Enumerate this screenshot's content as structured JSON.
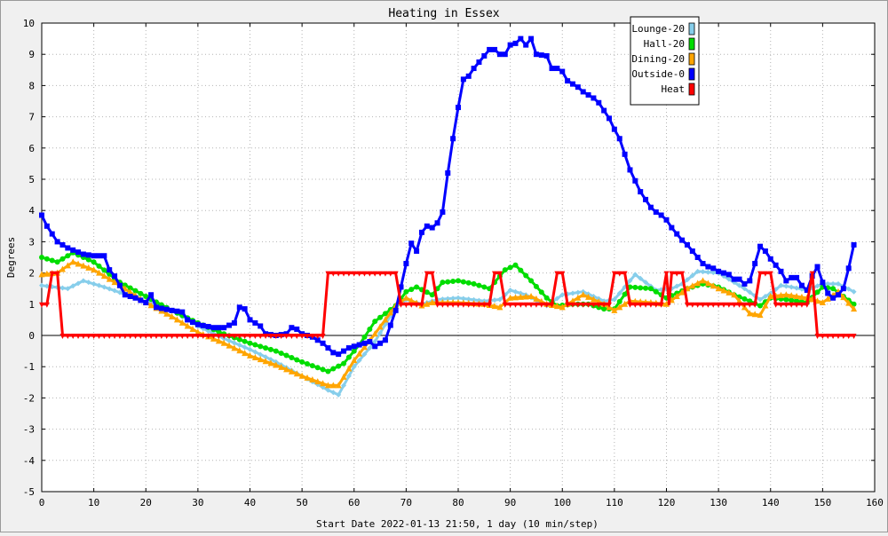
{
  "chart_data": {
    "type": "line",
    "title": "Heating in Essex",
    "xlabel": "Start Date 2022-01-13 21:50, 1 day (10 min/step)",
    "ylabel": "Degrees",
    "xlim": [
      0,
      160
    ],
    "ylim": [
      -5,
      10
    ],
    "xticks": [
      0,
      10,
      20,
      30,
      40,
      50,
      60,
      70,
      80,
      90,
      100,
      110,
      120,
      130,
      140,
      150,
      160
    ],
    "yticks": [
      -5,
      -4,
      -3,
      -2,
      -1,
      0,
      1,
      2,
      3,
      4,
      5,
      6,
      7,
      8,
      9,
      10
    ],
    "grid": true,
    "legend_position": "top-right",
    "series": [
      {
        "name": "Lounge-20",
        "color": "#87ceeb",
        "marker": "diamond",
        "points": [
          [
            0,
            1.6
          ],
          [
            5,
            1.5
          ],
          [
            8,
            1.75
          ],
          [
            12,
            1.55
          ],
          [
            18,
            1.2
          ],
          [
            25,
            0.8
          ],
          [
            30,
            0.3
          ],
          [
            35,
            -0.1
          ],
          [
            40,
            -0.45
          ],
          [
            45,
            -0.85
          ],
          [
            50,
            -1.3
          ],
          [
            55,
            -1.75
          ],
          [
            57,
            -1.9
          ],
          [
            60,
            -1.0
          ],
          [
            64,
            -0.2
          ],
          [
            68,
            0.9
          ],
          [
            70,
            1.15
          ],
          [
            73,
            1.0
          ],
          [
            76,
            1.15
          ],
          [
            80,
            1.2
          ],
          [
            85,
            1.1
          ],
          [
            88,
            1.15
          ],
          [
            90,
            1.45
          ],
          [
            93,
            1.3
          ],
          [
            97,
            0.95
          ],
          [
            100,
            1.3
          ],
          [
            104,
            1.4
          ],
          [
            108,
            1.1
          ],
          [
            110,
            1.15
          ],
          [
            114,
            1.95
          ],
          [
            118,
            1.45
          ],
          [
            121,
            1.5
          ],
          [
            123,
            1.65
          ],
          [
            126,
            2.05
          ],
          [
            130,
            2.0
          ],
          [
            135,
            1.5
          ],
          [
            138,
            1.15
          ],
          [
            140,
            1.35
          ],
          [
            142,
            1.6
          ],
          [
            144,
            1.55
          ],
          [
            147,
            1.45
          ],
          [
            150,
            1.65
          ],
          [
            153,
            1.65
          ],
          [
            156,
            1.4
          ]
        ]
      },
      {
        "name": "Hall-20",
        "color": "#00dd00",
        "marker": "circle",
        "points": [
          [
            0,
            2.5
          ],
          [
            3,
            2.35
          ],
          [
            6,
            2.65
          ],
          [
            10,
            2.35
          ],
          [
            15,
            1.7
          ],
          [
            20,
            1.25
          ],
          [
            25,
            0.8
          ],
          [
            30,
            0.4
          ],
          [
            35,
            0.05
          ],
          [
            40,
            -0.25
          ],
          [
            45,
            -0.5
          ],
          [
            50,
            -0.85
          ],
          [
            55,
            -1.15
          ],
          [
            58,
            -0.9
          ],
          [
            61,
            -0.3
          ],
          [
            64,
            0.45
          ],
          [
            68,
            0.95
          ],
          [
            70,
            1.4
          ],
          [
            72,
            1.55
          ],
          [
            75,
            1.3
          ],
          [
            77,
            1.7
          ],
          [
            80,
            1.75
          ],
          [
            83,
            1.65
          ],
          [
            86,
            1.5
          ],
          [
            89,
            2.1
          ],
          [
            91,
            2.25
          ],
          [
            94,
            1.75
          ],
          [
            97,
            1.2
          ],
          [
            99,
            0.95
          ],
          [
            102,
            1.0
          ],
          [
            105,
            1.0
          ],
          [
            108,
            0.85
          ],
          [
            110,
            0.85
          ],
          [
            113,
            1.55
          ],
          [
            117,
            1.5
          ],
          [
            120,
            1.2
          ],
          [
            124,
            1.5
          ],
          [
            127,
            1.65
          ],
          [
            130,
            1.55
          ],
          [
            133,
            1.3
          ],
          [
            136,
            1.1
          ],
          [
            138,
            0.95
          ],
          [
            140,
            1.2
          ],
          [
            143,
            1.15
          ],
          [
            147,
            1.05
          ],
          [
            150,
            1.55
          ],
          [
            152,
            1.5
          ],
          [
            156,
            1.0
          ]
        ]
      },
      {
        "name": "Dining-20",
        "color": "#ffa500",
        "marker": "triangle",
        "points": [
          [
            0,
            1.95
          ],
          [
            3,
            2.0
          ],
          [
            6,
            2.35
          ],
          [
            10,
            2.1
          ],
          [
            15,
            1.6
          ],
          [
            20,
            1.05
          ],
          [
            25,
            0.6
          ],
          [
            30,
            0.1
          ],
          [
            35,
            -0.25
          ],
          [
            40,
            -0.65
          ],
          [
            45,
            -0.95
          ],
          [
            50,
            -1.3
          ],
          [
            55,
            -1.6
          ],
          [
            57,
            -1.6
          ],
          [
            60,
            -0.8
          ],
          [
            64,
            0.05
          ],
          [
            68,
            0.95
          ],
          [
            70,
            1.2
          ],
          [
            73,
            0.95
          ],
          [
            75,
            1.05
          ],
          [
            80,
            1.05
          ],
          [
            85,
            1.0
          ],
          [
            88,
            0.9
          ],
          [
            90,
            1.2
          ],
          [
            94,
            1.25
          ],
          [
            97,
            1.0
          ],
          [
            100,
            0.9
          ],
          [
            104,
            1.3
          ],
          [
            108,
            1.0
          ],
          [
            110,
            0.8
          ],
          [
            113,
            1.1
          ],
          [
            117,
            1.05
          ],
          [
            120,
            1.0
          ],
          [
            124,
            1.5
          ],
          [
            127,
            1.75
          ],
          [
            130,
            1.5
          ],
          [
            133,
            1.3
          ],
          [
            136,
            0.7
          ],
          [
            138,
            0.65
          ],
          [
            140,
            1.25
          ],
          [
            143,
            1.3
          ],
          [
            147,
            1.2
          ],
          [
            150,
            1.05
          ],
          [
            153,
            1.4
          ],
          [
            156,
            0.85
          ]
        ]
      },
      {
        "name": "Outside-0",
        "color": "#0000ff",
        "marker": "square",
        "points": [
          [
            0,
            3.85
          ],
          [
            1,
            3.5
          ],
          [
            3,
            3.0
          ],
          [
            5,
            2.8
          ],
          [
            8,
            2.6
          ],
          [
            10,
            2.55
          ],
          [
            12,
            2.55
          ],
          [
            13,
            2.1
          ],
          [
            14,
            1.9
          ],
          [
            16,
            1.3
          ],
          [
            18,
            1.2
          ],
          [
            20,
            1.05
          ],
          [
            21,
            1.3
          ],
          [
            22,
            0.9
          ],
          [
            25,
            0.8
          ],
          [
            27,
            0.75
          ],
          [
            28,
            0.5
          ],
          [
            30,
            0.35
          ],
          [
            33,
            0.25
          ],
          [
            35,
            0.25
          ],
          [
            37,
            0.4
          ],
          [
            38,
            0.9
          ],
          [
            39,
            0.85
          ],
          [
            40,
            0.5
          ],
          [
            42,
            0.3
          ],
          [
            43,
            0.05
          ],
          [
            45,
            0.0
          ],
          [
            47,
            0.05
          ],
          [
            48,
            0.25
          ],
          [
            49,
            0.2
          ],
          [
            50,
            0.05
          ],
          [
            52,
            -0.05
          ],
          [
            54,
            -0.25
          ],
          [
            56,
            -0.55
          ],
          [
            57,
            -0.6
          ],
          [
            59,
            -0.4
          ],
          [
            61,
            -0.3
          ],
          [
            63,
            -0.2
          ],
          [
            64,
            -0.35
          ],
          [
            66,
            -0.15
          ],
          [
            68,
            0.8
          ],
          [
            70,
            2.3
          ],
          [
            71,
            2.95
          ],
          [
            72,
            2.7
          ],
          [
            73,
            3.3
          ],
          [
            74,
            3.5
          ],
          [
            75,
            3.45
          ],
          [
            76,
            3.6
          ],
          [
            77,
            3.95
          ],
          [
            78,
            5.2
          ],
          [
            79,
            6.3
          ],
          [
            80,
            7.3
          ],
          [
            81,
            8.2
          ],
          [
            82,
            8.3
          ],
          [
            83,
            8.55
          ],
          [
            84,
            8.75
          ],
          [
            85,
            8.95
          ],
          [
            86,
            9.15
          ],
          [
            87,
            9.15
          ],
          [
            88,
            9.0
          ],
          [
            89,
            9.0
          ],
          [
            90,
            9.3
          ],
          [
            91,
            9.35
          ],
          [
            92,
            9.5
          ],
          [
            93,
            9.3
          ],
          [
            94,
            9.5
          ],
          [
            95,
            9.0
          ],
          [
            97,
            8.95
          ],
          [
            98,
            8.55
          ],
          [
            99,
            8.55
          ],
          [
            100,
            8.45
          ],
          [
            101,
            8.15
          ],
          [
            102,
            8.05
          ],
          [
            103,
            7.95
          ],
          [
            104,
            7.8
          ],
          [
            106,
            7.6
          ],
          [
            107,
            7.45
          ],
          [
            108,
            7.2
          ],
          [
            109,
            6.95
          ],
          [
            110,
            6.6
          ],
          [
            111,
            6.3
          ],
          [
            112,
            5.8
          ],
          [
            113,
            5.3
          ],
          [
            114,
            4.95
          ],
          [
            115,
            4.6
          ],
          [
            116,
            4.35
          ],
          [
            117,
            4.1
          ],
          [
            118,
            3.95
          ],
          [
            119,
            3.85
          ],
          [
            120,
            3.7
          ],
          [
            121,
            3.45
          ],
          [
            122,
            3.25
          ],
          [
            123,
            3.05
          ],
          [
            124,
            2.9
          ],
          [
            125,
            2.7
          ],
          [
            126,
            2.5
          ],
          [
            127,
            2.3
          ],
          [
            128,
            2.2
          ],
          [
            129,
            2.15
          ],
          [
            130,
            2.05
          ],
          [
            132,
            1.95
          ],
          [
            133,
            1.8
          ],
          [
            134,
            1.8
          ],
          [
            135,
            1.65
          ],
          [
            136,
            1.75
          ],
          [
            137,
            2.3
          ],
          [
            138,
            2.85
          ],
          [
            139,
            2.7
          ],
          [
            140,
            2.45
          ],
          [
            141,
            2.25
          ],
          [
            142,
            2.05
          ],
          [
            143,
            1.75
          ],
          [
            144,
            1.85
          ],
          [
            145,
            1.85
          ],
          [
            146,
            1.6
          ],
          [
            147,
            1.45
          ],
          [
            148,
            1.9
          ],
          [
            149,
            2.2
          ],
          [
            150,
            1.7
          ],
          [
            151,
            1.35
          ],
          [
            152,
            1.2
          ],
          [
            153,
            1.3
          ],
          [
            154,
            1.5
          ],
          [
            155,
            2.15
          ],
          [
            156,
            2.9
          ]
        ]
      },
      {
        "name": "Heat",
        "color": "#ff0000",
        "marker": "triangle-down",
        "points": [
          [
            0,
            1
          ],
          [
            1,
            1
          ],
          [
            2,
            2
          ],
          [
            3,
            2
          ],
          [
            4,
            0
          ],
          [
            54,
            0
          ],
          [
            55,
            2
          ],
          [
            68,
            2
          ],
          [
            69,
            1
          ],
          [
            73,
            1
          ],
          [
            74,
            2
          ],
          [
            75,
            2
          ],
          [
            76,
            1
          ],
          [
            86,
            1
          ],
          [
            87,
            2
          ],
          [
            88,
            2
          ],
          [
            89,
            1
          ],
          [
            98,
            1
          ],
          [
            99,
            2
          ],
          [
            100,
            2
          ],
          [
            101,
            1
          ],
          [
            109,
            1
          ],
          [
            110,
            2
          ],
          [
            112,
            2
          ],
          [
            113,
            1
          ],
          [
            119,
            1
          ],
          [
            120,
            2
          ],
          [
            120.5,
            1
          ],
          [
            121,
            2
          ],
          [
            123,
            2
          ],
          [
            124,
            1
          ],
          [
            137,
            1
          ],
          [
            138,
            2
          ],
          [
            140,
            2
          ],
          [
            141,
            1
          ],
          [
            147,
            1
          ],
          [
            148,
            2
          ],
          [
            149,
            0
          ],
          [
            156,
            0
          ]
        ]
      }
    ]
  }
}
